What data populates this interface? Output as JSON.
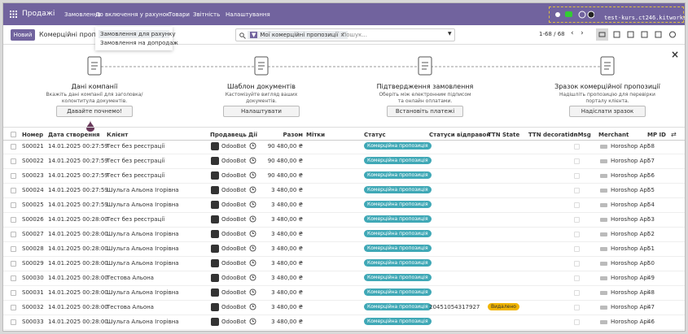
{
  "navbar": {
    "app": "Продажі",
    "menu": [
      "Замовлення",
      "До включення у рахунок",
      "Товари",
      "Звітність",
      "Налаштування"
    ],
    "instance": "test-kurs.ct246.kitworks..."
  },
  "dropdown": [
    "Замовлення для рахунку",
    "Замовлення на допродаж"
  ],
  "control_panel": {
    "new_button": "Новий",
    "breadcrumb": "Комерційні пропо",
    "facet": "Мої комерційні пропозиції",
    "search_placeholder": "Пошук...",
    "pager": "1-68 / 68"
  },
  "onboarding": {
    "steps": [
      {
        "title": "Дані компанії",
        "description": [
          "Вкажіть дані компанії для заголовка/",
          "колонтитула документів."
        ],
        "button": "Давайте почнемо!"
      },
      {
        "title": "Шаблон документів",
        "description": [
          "Кастомізуйте вигляд ваших",
          "документів."
        ],
        "button": "Налаштувати"
      },
      {
        "title": "Підтвердження замовлення",
        "description": [
          "Оберіть між електронним підписом",
          "та онлайн оплатами."
        ],
        "button": "Встановіть платежі"
      },
      {
        "title": "Зразок комерційної пропозиції",
        "description": [
          "Надішліть пропозицію для перевірки",
          "порталу клієнта."
        ],
        "button": "Надіслати зразок"
      }
    ]
  },
  "table": {
    "columns": [
      "Номер",
      "Дата створення",
      "Клієнт",
      "Продавець",
      "Дії",
      "Разом",
      "Мітки",
      "Статус",
      "Статуси відправок",
      "TTN State",
      "TTN decoration",
      "InMsg",
      "Merchant",
      "MP ID"
    ],
    "rows": [
      {
        "number": "S00021",
        "date": "14.01.2025 00:27:59",
        "customer": "Тест без реєстрації",
        "salesperson": "OdooBot",
        "total": "90 480,00 ₴",
        "status": "Комерційна пропозиція",
        "merchant": "Horoshop Api",
        "mp_id": 58
      },
      {
        "number": "S00022",
        "date": "14.01.2025 00:27:59",
        "customer": "Тест без реєстрації",
        "salesperson": "OdooBot",
        "total": "90 480,00 ₴",
        "status": "Комерційна пропозиція",
        "merchant": "Horoshop Api",
        "mp_id": 57
      },
      {
        "number": "S00023",
        "date": "14.01.2025 00:27:59",
        "customer": "Тест без реєстрації",
        "salesperson": "OdooBot",
        "total": "90 480,00 ₴",
        "status": "Комерційна пропозиція",
        "merchant": "Horoshop Api",
        "mp_id": 56
      },
      {
        "number": "S00024",
        "date": "14.01.2025 00:27:59",
        "customer": "Шульга Альона Ігорівна",
        "salesperson": "OdooBot",
        "total": "3 480,00 ₴",
        "status": "Комерційна пропозиція",
        "merchant": "Horoshop Api",
        "mp_id": 55
      },
      {
        "number": "S00025",
        "date": "14.01.2025 00:27:59",
        "customer": "Шульга Альона Ігорівна",
        "salesperson": "OdooBot",
        "total": "3 480,00 ₴",
        "status": "Комерційна пропозиція",
        "merchant": "Horoshop Api",
        "mp_id": 54
      },
      {
        "number": "S00026",
        "date": "14.01.2025 00:28:00",
        "customer": "Тест без реєстрації",
        "salesperson": "OdooBot",
        "total": "3 480,00 ₴",
        "status": "Комерційна пропозиція",
        "merchant": "Horoshop Api",
        "mp_id": 53
      },
      {
        "number": "S00027",
        "date": "14.01.2025 00:28:00",
        "customer": "Шульга Альона Ігорівна",
        "salesperson": "OdooBot",
        "total": "3 480,00 ₴",
        "status": "Комерційна пропозиція",
        "merchant": "Horoshop Api",
        "mp_id": 52
      },
      {
        "number": "S00028",
        "date": "14.01.2025 00:28:00",
        "customer": "Шульга Альона Ігорівна",
        "salesperson": "OdooBot",
        "total": "3 480,00 ₴",
        "status": "Комерційна пропозиція",
        "merchant": "Horoshop Api",
        "mp_id": 51
      },
      {
        "number": "S00029",
        "date": "14.01.2025 00:28:00",
        "customer": "Шульга Альона Ігорівна",
        "salesperson": "OdooBot",
        "total": "3 480,00 ₴",
        "status": "Комерційна пропозиція",
        "merchant": "Horoshop Api",
        "mp_id": 50
      },
      {
        "number": "S00030",
        "date": "14.01.2025 00:28:00",
        "customer": "Тестова Альона",
        "salesperson": "OdooBot",
        "total": "3 480,00 ₴",
        "status": "Комерційна пропозиція",
        "merchant": "Horoshop Api",
        "mp_id": 49
      },
      {
        "number": "S00031",
        "date": "14.01.2025 00:28:00",
        "customer": "Шульга Альона Ігорівна",
        "salesperson": "OdooBot",
        "total": "3 480,00 ₴",
        "status": "Комерційна пропозиція",
        "merchant": "Horoshop Api",
        "mp_id": 48
      },
      {
        "number": "S00032",
        "date": "14.01.2025 00:28:00",
        "customer": "Тестова Альона",
        "salesperson": "OdooBot",
        "total": "3 480,00 ₴",
        "status": "Комерційна пропозиція",
        "delivery_status": "20451054317927",
        "ttn_state": "Видалено",
        "merchant": "Horoshop Api",
        "mp_id": 47
      },
      {
        "number": "S00033",
        "date": "14.01.2025 00:28:00",
        "customer": "Шульга Альона Ігорівна",
        "salesperson": "OdooBot",
        "total": "3 480,00 ₴",
        "status": "Комерційна пропозиція",
        "merchant": "Horoshop Api",
        "mp_id": 46
      }
    ]
  }
}
